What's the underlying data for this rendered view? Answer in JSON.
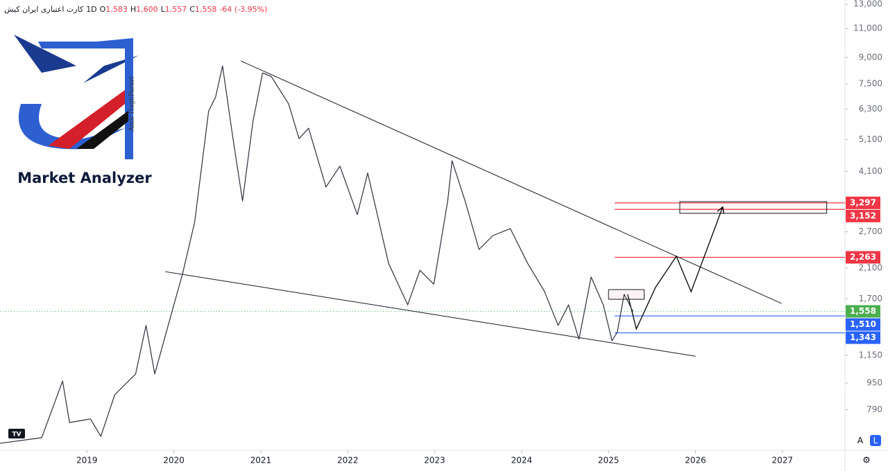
{
  "chart_data": {
    "type": "line",
    "header": {
      "symbol": "کارت اعتباری ایران کیش",
      "interval": "1D",
      "ohlc": [
        {
          "key": "O",
          "value": "1,583"
        },
        {
          "key": "H",
          "value": "1,600"
        },
        {
          "key": "L",
          "value": "1,557"
        },
        {
          "key": "C",
          "value": "1,558"
        }
      ],
      "change": "-64 (-3.95%)"
    },
    "logo": {
      "title": "Market Analyzer",
      "author": "Amir HaghParast"
    },
    "log_scale": true,
    "xlim": [
      2018.0,
      2027.72
    ],
    "xticks": [
      2019,
      2020,
      2021,
      2022,
      2023,
      2024,
      2025,
      2026,
      2027
    ],
    "ylim": [
      597,
      13390
    ],
    "yticks": [
      {
        "value": 790,
        "label": "790"
      },
      {
        "value": 950,
        "label": "950"
      },
      {
        "value": 1150,
        "label": "1,150"
      },
      {
        "value": 1700,
        "label": "1,700"
      },
      {
        "value": 2100,
        "label": "2,100"
      },
      {
        "value": 2700,
        "label": "2,700"
      },
      {
        "value": 4100,
        "label": "4,100"
      },
      {
        "value": 5100,
        "label": "5,100"
      },
      {
        "value": 6300,
        "label": "6,300"
      },
      {
        "value": 7500,
        "label": "7,500"
      },
      {
        "value": 9000,
        "label": "9,000"
      },
      {
        "value": 11000,
        "label": "11,000"
      },
      {
        "value": 13000,
        "label": "13,000"
      }
    ],
    "series": [
      {
        "color": "#2a2e39",
        "x": [
          2018.0,
          2018.48,
          2018.72,
          2018.8,
          2019.04,
          2019.16,
          2019.32,
          2019.56,
          2019.68,
          2019.78,
          2020.0,
          2020.1,
          2020.24,
          2020.4,
          2020.48,
          2020.56,
          2020.68,
          2020.79,
          2020.91,
          2021.02,
          2021.12,
          2021.32,
          2021.44,
          2021.55,
          2021.75,
          2021.91,
          2022.11,
          2022.23,
          2022.47,
          2022.69,
          2022.83,
          2022.99,
          2023.15,
          2023.2,
          2023.35,
          2023.51,
          2023.67,
          2023.87,
          2024.07,
          2024.26,
          2024.42,
          2024.54,
          2024.66,
          2024.8,
          2024.94,
          2025.04,
          2025.1,
          2025.18,
          2025.28
        ],
        "values": [
          626,
          651,
          963,
          723,
          741,
          657,
          876,
          1011,
          1414,
          1011,
          1630,
          2020,
          2893,
          6220,
          6850,
          8490,
          5140,
          3340,
          5790,
          8090,
          7900,
          6530,
          5140,
          5520,
          3680,
          4250,
          3040,
          4050,
          2170,
          1630,
          2070,
          1880,
          3340,
          4410,
          3340,
          2390,
          2630,
          2760,
          2170,
          1795,
          1414,
          1630,
          1285,
          1975,
          1630,
          1272,
          1348,
          1753,
          1558
        ]
      }
    ],
    "levels": {
      "values": [
        3297,
        3152,
        2263,
        1558,
        1510,
        1343
      ],
      "value_labels": [
        "3,297",
        "3,152",
        "2,263",
        "1,558",
        "1,510",
        "1,343"
      ],
      "colors": [
        "#f23645",
        "#f23645",
        "#f23645",
        "#4caf50",
        "#2962ff",
        "#2962ff"
      ]
    },
    "trendlines": [
      {
        "x": [
          2020.77,
          2026.99
        ],
        "y": [
          8790,
          1646
        ]
      },
      {
        "x": [
          2019.9,
          2026.0
        ],
        "y": [
          2050,
          1143
        ]
      }
    ],
    "forecast": {
      "x": [
        2025.22,
        2025.32,
        2025.54,
        2025.78,
        2025.95,
        2026.31
      ],
      "y": [
        1752,
        1380,
        1838,
        2279,
        1785,
        3187
      ]
    },
    "boxes": [
      {
        "x": [
          2025.82,
          2027.51
        ],
        "y": [
          3067,
          3325
        ]
      },
      {
        "x": [
          2025.0,
          2025.41
        ],
        "y": [
          1694,
          1811
        ]
      }
    ],
    "buttons": [
      "A",
      "L"
    ]
  }
}
